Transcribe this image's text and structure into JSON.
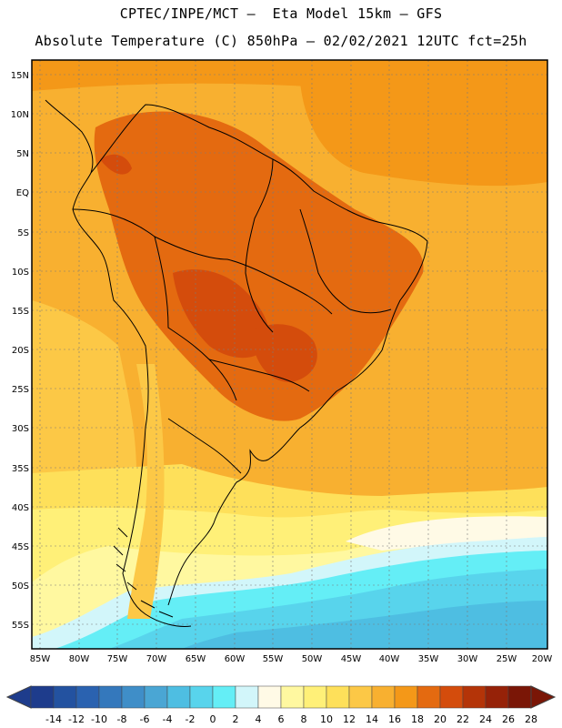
{
  "title_line1": "CPTEC/INPE/MCT –  Eta Model 15km – GFS",
  "title_line2": "Absolute Temperature (C) 850hPa – 02/02/2021 12UTC fct=25h",
  "lat_labels": [
    "15N",
    "10N",
    "5N",
    "EQ",
    "5S",
    "10S",
    "15S",
    "20S",
    "25S",
    "30S",
    "35S",
    "40S",
    "45S",
    "50S",
    "55S"
  ],
  "lon_labels": [
    "85W",
    "80W",
    "75W",
    "70W",
    "65W",
    "60W",
    "55W",
    "50W",
    "45W",
    "40W",
    "35W",
    "30W",
    "25W",
    "20W"
  ],
  "colorbar": {
    "labels": [
      "-14",
      "-12",
      "-10",
      "-8",
      "-6",
      "-4",
      "-2",
      "0",
      "2",
      "4",
      "6",
      "8",
      "10",
      "12",
      "14",
      "16",
      "18",
      "20",
      "22",
      "24",
      "26",
      "28"
    ],
    "colors": [
      "#1e3c8c",
      "#2352a0",
      "#2a62b0",
      "#3478bc",
      "#3f8ec8",
      "#4aa6d4",
      "#4ebee2",
      "#58d4ec",
      "#64eef6",
      "#d2f6fa",
      "#fffae6",
      "#fff8a0",
      "#fff078",
      "#fee05a",
      "#fcc846",
      "#f8b030",
      "#f49818",
      "#e46a10",
      "#d44c0c",
      "#b43408",
      "#962208",
      "#7a1606"
    ]
  }
}
